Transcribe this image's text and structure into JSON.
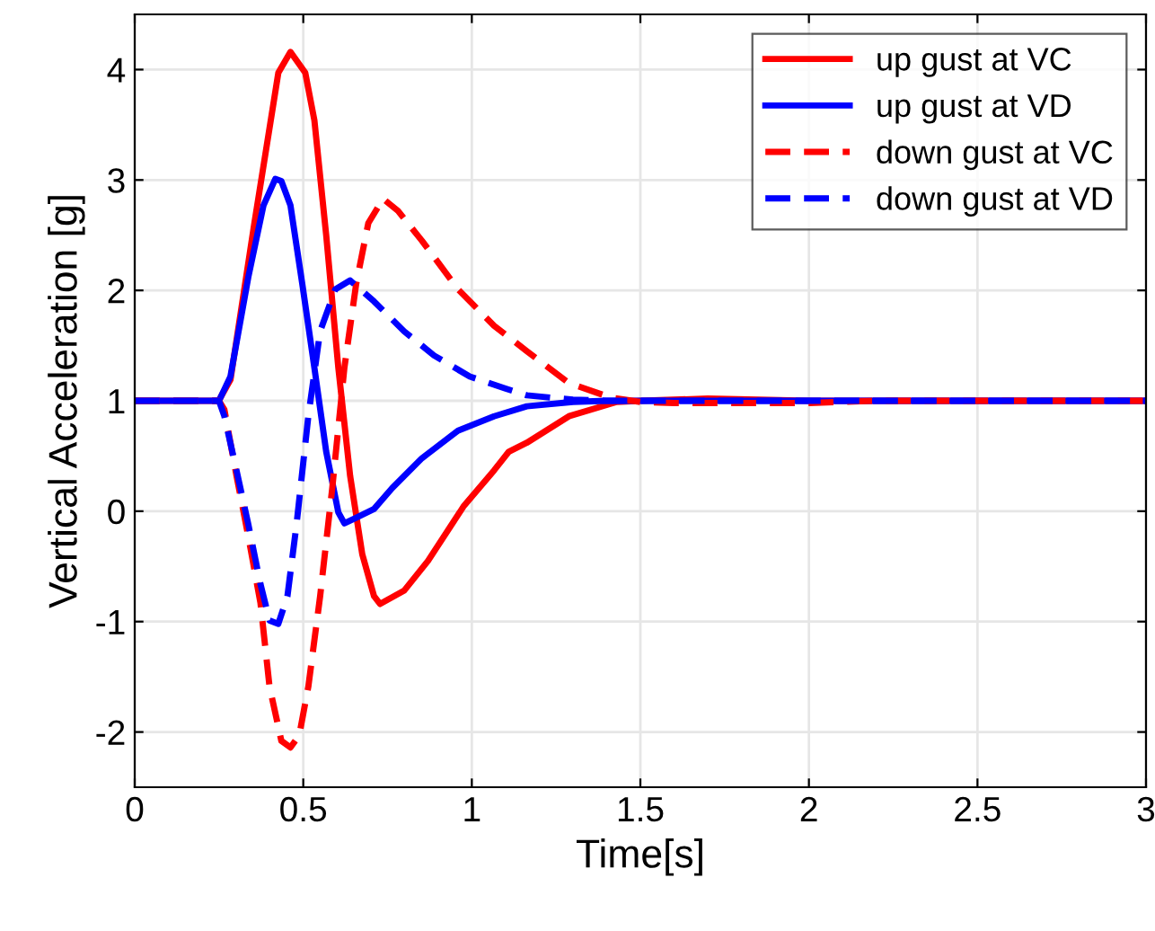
{
  "chart_data": {
    "type": "line",
    "xlabel": "Time[s]",
    "ylabel": "Vertical Acceleration [g]",
    "xlim": [
      0,
      3
    ],
    "ylim": [
      -2.5,
      4.5
    ],
    "xticks": [
      0,
      0.5,
      1,
      1.5,
      2,
      2.5,
      3
    ],
    "yticks": [
      -2,
      -1,
      0,
      1,
      2,
      3,
      4
    ],
    "grid": true,
    "legend": "top right",
    "marker": "none",
    "series": [
      {
        "name": "up gust at VC",
        "color": "#ff0000",
        "line_style": "solid",
        "x": [
          0,
          0.249,
          0.284,
          0.355,
          0.426,
          0.462,
          0.506,
          0.533,
          0.568,
          0.604,
          0.639,
          0.675,
          0.71,
          0.728,
          0.799,
          0.87,
          0.977,
          1.066,
          1.11,
          1.163,
          1.288,
          1.43,
          1.5,
          1.7,
          2.0,
          3.0
        ],
        "values": [
          1,
          1,
          1.19,
          2.61,
          3.97,
          4.16,
          3.97,
          3.54,
          2.5,
          1.3,
          0.32,
          -0.39,
          -0.77,
          -0.84,
          -0.72,
          -0.45,
          0.05,
          0.37,
          0.54,
          0.62,
          0.86,
          0.99,
          1.0,
          1.02,
          1.0,
          1.0
        ]
      },
      {
        "name": "up gust at VD",
        "color": "#0000ff",
        "line_style": "solid",
        "x": [
          0,
          0.25,
          0.284,
          0.337,
          0.382,
          0.417,
          0.435,
          0.462,
          0.497,
          0.533,
          0.568,
          0.604,
          0.622,
          0.657,
          0.71,
          0.764,
          0.852,
          0.959,
          1.066,
          1.163,
          1.3,
          1.4,
          3.0
        ],
        "values": [
          1,
          1,
          1.22,
          2.12,
          2.77,
          3.01,
          2.99,
          2.77,
          2.06,
          1.3,
          0.54,
          -0.01,
          -0.11,
          -0.06,
          0.02,
          0.21,
          0.48,
          0.73,
          0.86,
          0.95,
          0.99,
          1.0,
          1.0
        ]
      },
      {
        "name": "down gust at VC",
        "color": "#ff0000",
        "line_style": "dashed",
        "x": [
          0,
          0.25,
          0.266,
          0.302,
          0.337,
          0.373,
          0.4,
          0.435,
          0.462,
          0.488,
          0.515,
          0.55,
          0.586,
          0.622,
          0.657,
          0.693,
          0.737,
          0.781,
          0.852,
          0.959,
          1.066,
          1.163,
          1.288,
          1.412,
          1.5,
          1.6,
          2.0,
          2.2,
          3.0
        ],
        "values": [
          1,
          1,
          0.92,
          0.32,
          -0.23,
          -0.83,
          -1.59,
          -2.08,
          -2.14,
          -2.03,
          -1.59,
          -0.77,
          0.21,
          1.3,
          2.06,
          2.61,
          2.83,
          2.72,
          2.45,
          2.01,
          1.68,
          1.45,
          1.16,
          1.03,
          0.99,
          0.98,
          0.98,
          1.0,
          1.0
        ]
      },
      {
        "name": "down gust at VD",
        "color": "#0000ff",
        "line_style": "dashed",
        "x": [
          0,
          0.25,
          0.266,
          0.302,
          0.337,
          0.373,
          0.4,
          0.426,
          0.453,
          0.48,
          0.515,
          0.55,
          0.595,
          0.639,
          0.71,
          0.799,
          0.888,
          0.994,
          1.101,
          1.163,
          1.3,
          1.4,
          3.0
        ],
        "values": [
          1,
          1,
          0.86,
          0.37,
          -0.12,
          -0.66,
          -0.99,
          -1.02,
          -0.77,
          -0.12,
          0.86,
          1.63,
          2.01,
          2.09,
          1.9,
          1.63,
          1.41,
          1.22,
          1.11,
          1.05,
          1.01,
          1.0,
          1.0
        ]
      }
    ]
  }
}
